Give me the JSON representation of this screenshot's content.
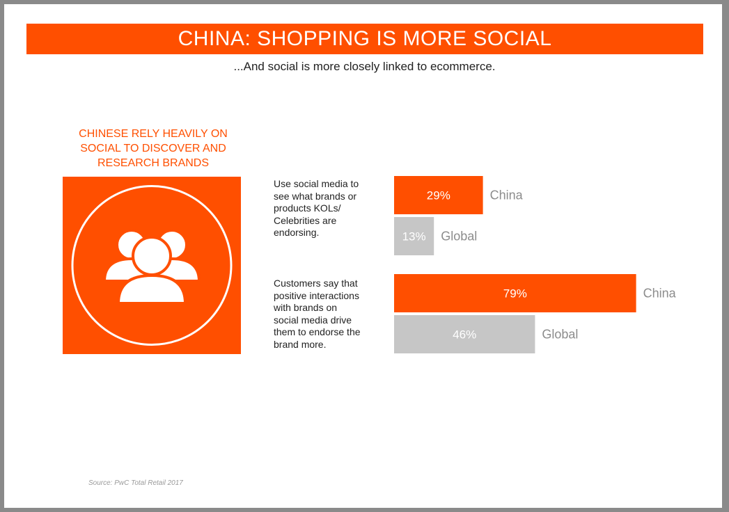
{
  "title": "CHINA: SHOPPING IS MORE SOCIAL",
  "subtitle": "...And social is more closely linked to ecommerce.",
  "left_heading": [
    "CHINESE RELY HEAVILY ON",
    "SOCIAL TO DISCOVER AND",
    "RESEARCH BRANDS"
  ],
  "icon": "people-group-icon",
  "source": "Source: PwC Total Retail 2017",
  "colors": {
    "accent": "#ff4f00",
    "global": "#c6c6c6"
  },
  "chart_data": {
    "type": "bar",
    "orientation": "horizontal",
    "xlim": [
      0,
      100
    ],
    "groups": [
      {
        "label_lines": [
          "Use social media to",
          "see what brands or",
          "products KOLs/",
          "Celebrities are",
          "endorsing."
        ],
        "bars": [
          {
            "name": "China",
            "value": 29,
            "label": "29%"
          },
          {
            "name": "Global",
            "value": 13,
            "label": "13%"
          }
        ]
      },
      {
        "label_lines": [
          "Customers say that",
          "positive interactions",
          "with brands on",
          "social media drive",
          "them to endorse the",
          "brand more."
        ],
        "bars": [
          {
            "name": "China",
            "value": 79,
            "label": "79%"
          },
          {
            "name": "Global",
            "value": 46,
            "label": "46%"
          }
        ]
      }
    ]
  }
}
